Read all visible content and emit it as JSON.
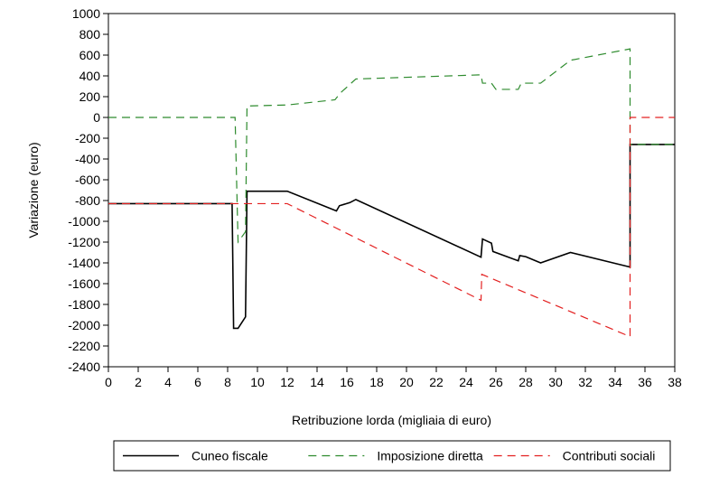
{
  "chart_data": {
    "type": "line",
    "xlabel": "Retribuzione lorda (migliaia di euro)",
    "ylabel": "Variazione (euro)",
    "xlim": [
      0,
      38
    ],
    "ylim": [
      -2400,
      1000
    ],
    "xticks": [
      0,
      2,
      4,
      6,
      8,
      10,
      12,
      14,
      16,
      18,
      20,
      22,
      24,
      26,
      28,
      30,
      32,
      34,
      36,
      38
    ],
    "yticks": [
      1000,
      800,
      600,
      400,
      200,
      0,
      -200,
      -400,
      -600,
      -800,
      -1000,
      -1200,
      -1400,
      -1600,
      -1800,
      -2000,
      -2200,
      -2400
    ],
    "grid": false,
    "legend_position": "bottom",
    "series": [
      {
        "name": "Cuneo fiscale",
        "color": "#000000",
        "dash": "solid",
        "points": [
          [
            0,
            -830
          ],
          [
            8.3,
            -830
          ],
          [
            8.4,
            -2030
          ],
          [
            8.7,
            -2030
          ],
          [
            9.2,
            -1920
          ],
          [
            9.3,
            -710
          ],
          [
            12.0,
            -710
          ],
          [
            15.3,
            -900
          ],
          [
            15.5,
            -850
          ],
          [
            16.2,
            -820
          ],
          [
            16.6,
            -790
          ],
          [
            25.0,
            -1345
          ],
          [
            25.1,
            -1170
          ],
          [
            25.7,
            -1210
          ],
          [
            25.8,
            -1290
          ],
          [
            27.5,
            -1380
          ],
          [
            27.6,
            -1330
          ],
          [
            28.0,
            -1340
          ],
          [
            29.0,
            -1400
          ],
          [
            31.0,
            -1300
          ],
          [
            35.0,
            -1440
          ],
          [
            35.0,
            -260
          ],
          [
            38.0,
            -260
          ]
        ]
      },
      {
        "name": "Imposizione diretta",
        "color": "#2e8b2e",
        "dash": "dashed",
        "points": [
          [
            0,
            0
          ],
          [
            8.5,
            0
          ],
          [
            8.7,
            -1200
          ],
          [
            9.2,
            -1100
          ],
          [
            9.3,
            110
          ],
          [
            12.0,
            120
          ],
          [
            15.2,
            170
          ],
          [
            15.6,
            240
          ],
          [
            16.6,
            370
          ],
          [
            25.0,
            410
          ],
          [
            25.1,
            330
          ],
          [
            25.7,
            330
          ],
          [
            26.0,
            270
          ],
          [
            27.5,
            270
          ],
          [
            27.7,
            330
          ],
          [
            29.0,
            330
          ],
          [
            31.0,
            550
          ],
          [
            35.0,
            660
          ],
          [
            35.0,
            -260
          ],
          [
            38.0,
            -260
          ]
        ]
      },
      {
        "name": "Contributi sociali",
        "color": "#e32020",
        "dash": "dashed",
        "points": [
          [
            0,
            -830
          ],
          [
            12.0,
            -830
          ],
          [
            25.0,
            -1760
          ],
          [
            25.05,
            -1510
          ],
          [
            35.0,
            -2110
          ],
          [
            35.0,
            0
          ],
          [
            38.0,
            0
          ]
        ]
      }
    ]
  }
}
